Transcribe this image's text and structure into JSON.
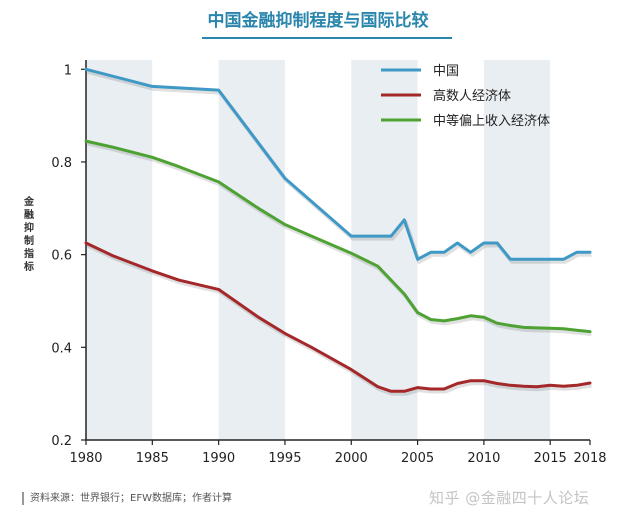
{
  "title": "中国金融抑制程度与国际比较",
  "source": "资料来源：世界银行；EFW数据库；作者计算",
  "watermark": "知乎 @金融四十人论坛",
  "chart_data": {
    "type": "line",
    "title": "中国金融抑制程度与国际比较",
    "xlabel": "",
    "ylabel": "金融抑制指标",
    "xlim": [
      1980,
      2018
    ],
    "ylim": [
      0.2,
      1.02
    ],
    "x_ticks": [
      1980,
      1985,
      1990,
      1995,
      2000,
      2005,
      2010,
      2015,
      2018
    ],
    "y_ticks": [
      0.2,
      0.4,
      0.6,
      0.8,
      1
    ],
    "y_tick_labels": [
      "0.2",
      "0.4",
      "0.6",
      "0.8",
      "1"
    ],
    "legend_position": "top-right",
    "grid": "alternating vertical bands",
    "band_colors": [
      "#e9eef2",
      "#ffffff"
    ],
    "series": [
      {
        "name": "中国",
        "color": "#3e99c6",
        "points": [
          [
            1980,
            1.0
          ],
          [
            1985,
            0.963
          ],
          [
            1990,
            0.955
          ],
          [
            1995,
            0.765
          ],
          [
            2000,
            0.64
          ],
          [
            2003,
            0.64
          ],
          [
            2004,
            0.675
          ],
          [
            2005,
            0.59
          ],
          [
            2006,
            0.605
          ],
          [
            2007,
            0.605
          ],
          [
            2008,
            0.625
          ],
          [
            2009,
            0.605
          ],
          [
            2010,
            0.625
          ],
          [
            2011,
            0.625
          ],
          [
            2012,
            0.59
          ],
          [
            2013,
            0.59
          ],
          [
            2014,
            0.59
          ],
          [
            2015,
            0.59
          ],
          [
            2016,
            0.59
          ],
          [
            2017,
            0.605
          ],
          [
            2018,
            0.605
          ]
        ]
      },
      {
        "name": "高数人经济体",
        "color": "#a4282a",
        "points": [
          [
            1980,
            0.625
          ],
          [
            1982,
            0.598
          ],
          [
            1985,
            0.565
          ],
          [
            1987,
            0.545
          ],
          [
            1990,
            0.525
          ],
          [
            1993,
            0.465
          ],
          [
            1995,
            0.43
          ],
          [
            1997,
            0.4
          ],
          [
            2000,
            0.352
          ],
          [
            2002,
            0.315
          ],
          [
            2003,
            0.305
          ],
          [
            2004,
            0.305
          ],
          [
            2005,
            0.313
          ],
          [
            2006,
            0.31
          ],
          [
            2007,
            0.31
          ],
          [
            2008,
            0.322
          ],
          [
            2009,
            0.328
          ],
          [
            2010,
            0.328
          ],
          [
            2011,
            0.322
          ],
          [
            2012,
            0.318
          ],
          [
            2013,
            0.316
          ],
          [
            2014,
            0.315
          ],
          [
            2015,
            0.318
          ],
          [
            2016,
            0.316
          ],
          [
            2017,
            0.318
          ],
          [
            2018,
            0.323
          ]
        ]
      },
      {
        "name": "中等偏上收入经济体",
        "color": "#4ea233",
        "points": [
          [
            1980,
            0.845
          ],
          [
            1982,
            0.832
          ],
          [
            1985,
            0.81
          ],
          [
            1987,
            0.79
          ],
          [
            1990,
            0.757
          ],
          [
            1993,
            0.7
          ],
          [
            1995,
            0.665
          ],
          [
            1997,
            0.64
          ],
          [
            2000,
            0.603
          ],
          [
            2002,
            0.575
          ],
          [
            2003,
            0.545
          ],
          [
            2004,
            0.515
          ],
          [
            2005,
            0.475
          ],
          [
            2006,
            0.46
          ],
          [
            2007,
            0.457
          ],
          [
            2008,
            0.462
          ],
          [
            2009,
            0.468
          ],
          [
            2010,
            0.465
          ],
          [
            2011,
            0.452
          ],
          [
            2012,
            0.447
          ],
          [
            2013,
            0.443
          ],
          [
            2014,
            0.442
          ],
          [
            2015,
            0.441
          ],
          [
            2016,
            0.44
          ],
          [
            2017,
            0.437
          ],
          [
            2018,
            0.434
          ]
        ]
      }
    ]
  }
}
